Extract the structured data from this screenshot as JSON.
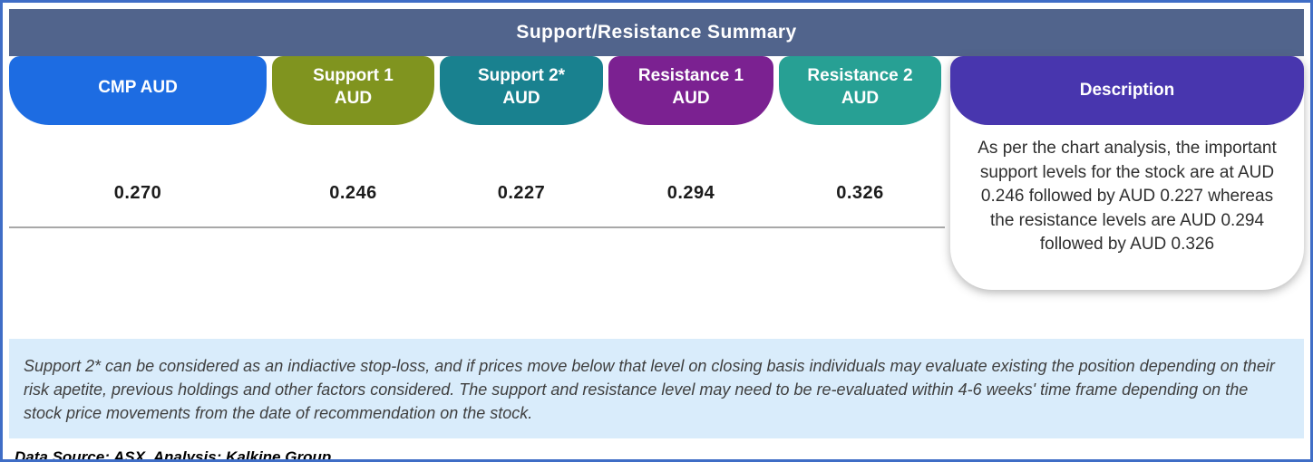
{
  "title": "Support/Resistance Summary",
  "columns": [
    {
      "id": "cmp",
      "label": "CMP AUD",
      "value": "0.270",
      "color": "#1d6ce2"
    },
    {
      "id": "support1",
      "label": "Support 1\nAUD",
      "value": "0.246",
      "color": "#80941f"
    },
    {
      "id": "support2",
      "label": "Support 2*\nAUD",
      "value": "0.227",
      "color": "#19818f"
    },
    {
      "id": "resistance1",
      "label": "Resistance 1\nAUD",
      "value": "0.294",
      "color": "#7b2191"
    },
    {
      "id": "resistance2",
      "label": "Resistance 2\nAUD",
      "value": "0.326",
      "color": "#27a094"
    }
  ],
  "description": {
    "label": "Description",
    "color": "#4836ae",
    "text": "As per the chart analysis, the important support levels for the stock are at AUD 0.246 followed by AUD 0.227 whereas the resistance levels are AUD 0.294 followed by AUD 0.326"
  },
  "footnote": "Support 2* can be considered as an indiactive stop-loss, and if prices move below that level on closing basis individuals may evaluate existing the position depending on their risk apetite, previous holdings and other factors considered. The support and resistance level may need to be re-evaluated within 4-6 weeks' time frame depending on the stock price movements from  the date of recommendation on the stock.",
  "data_source": "Data Source: ASX, Analysis: Kalkine Group",
  "colors": {
    "frame_border": "#3f6dc6",
    "header_bar": "#51648c",
    "footnote_bg": "#d9ecfb"
  },
  "chart_data": {
    "type": "table",
    "title": "Support/Resistance Summary",
    "columns": [
      "CMP AUD",
      "Support 1 AUD",
      "Support 2* AUD",
      "Resistance 1 AUD",
      "Resistance 2 AUD"
    ],
    "values": [
      0.27,
      0.246,
      0.227,
      0.294,
      0.326
    ]
  }
}
